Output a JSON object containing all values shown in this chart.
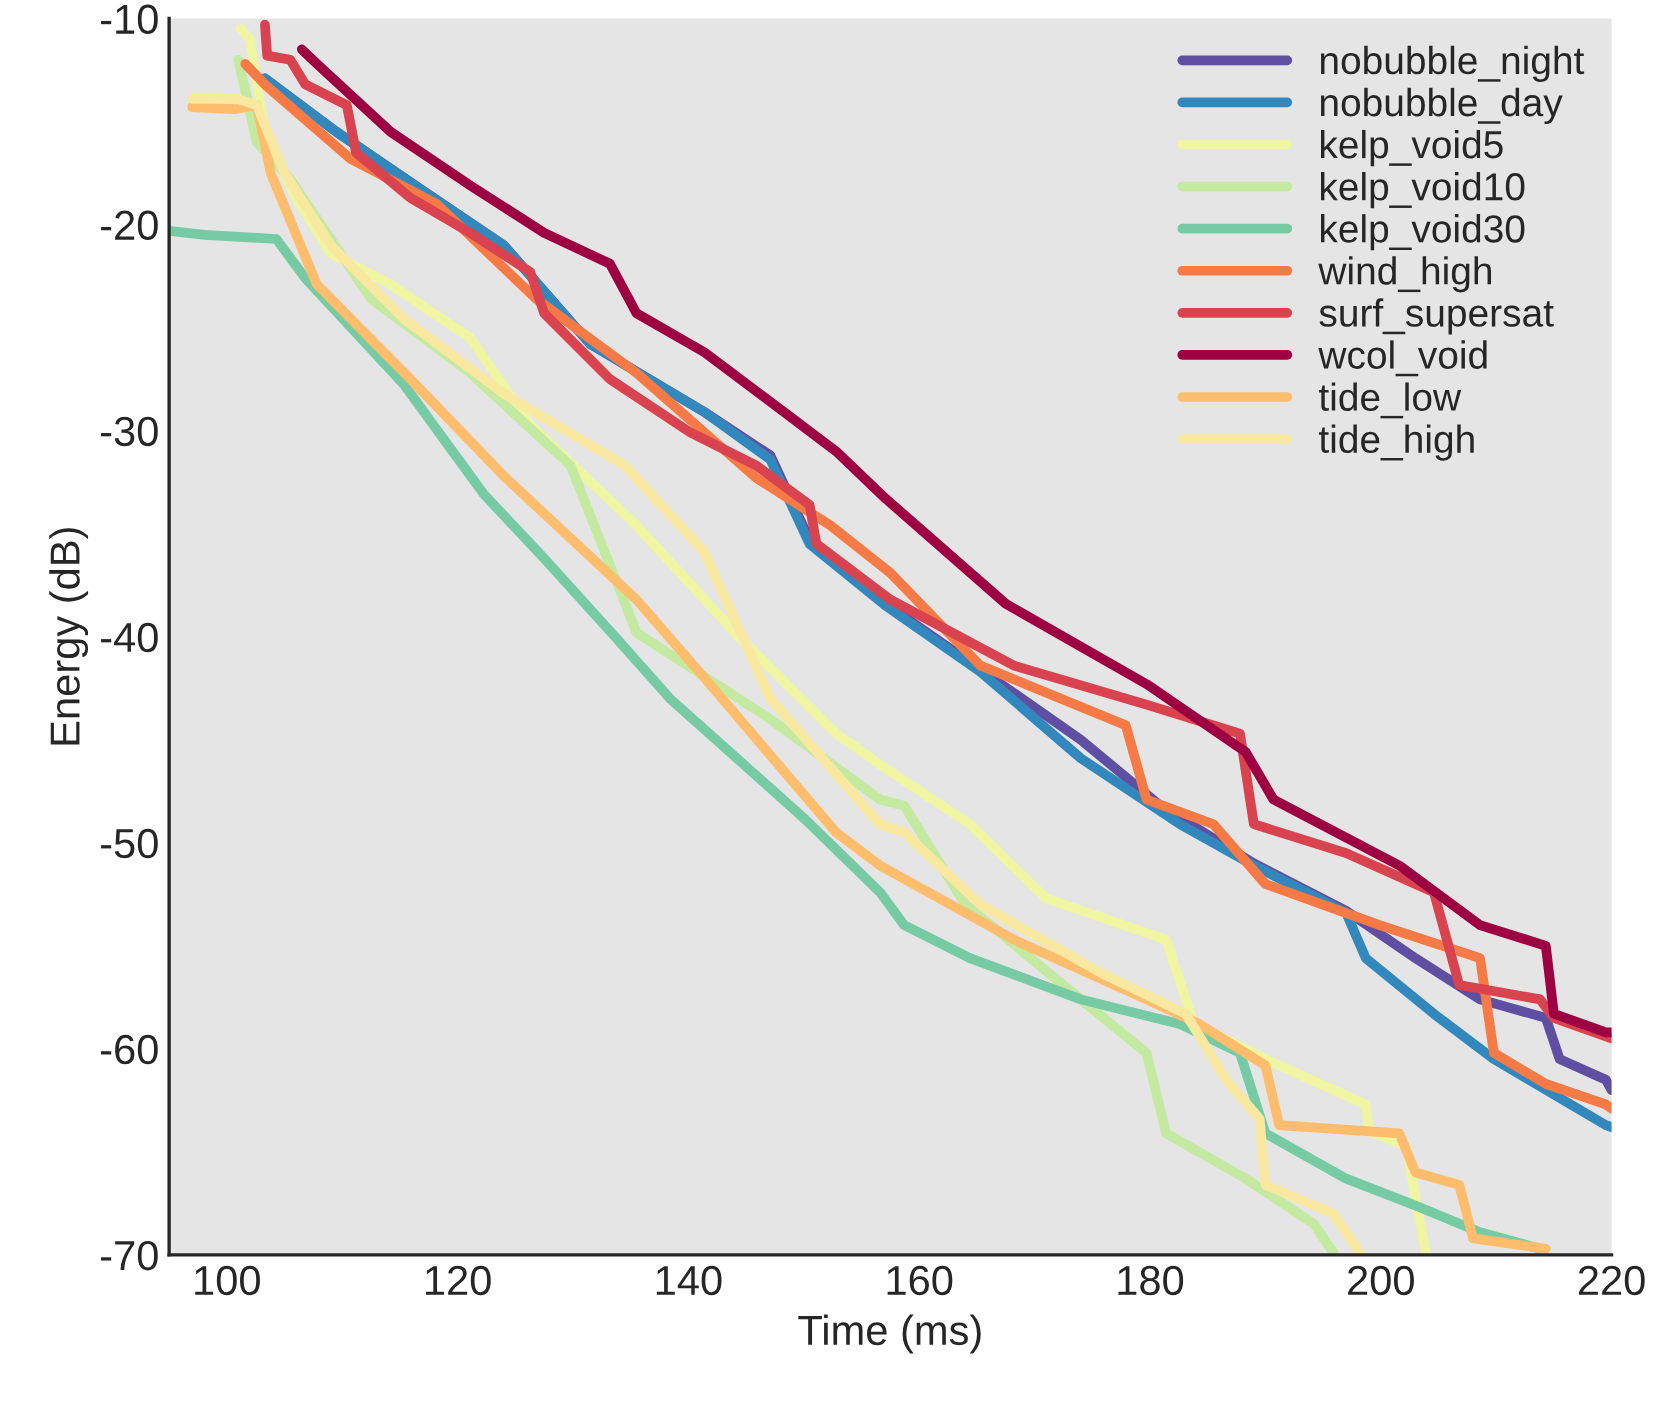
{
  "chart_data": {
    "type": "line",
    "xlabel": "Time (ms)",
    "ylabel": "Energy (dB)",
    "xlim": [
      95,
      220
    ],
    "ylim": [
      -70,
      -10
    ],
    "xticks": [
      100,
      120,
      140,
      160,
      180,
      200,
      220
    ],
    "yticks": [
      -70,
      -60,
      -50,
      -40,
      -30,
      -20,
      -10
    ],
    "grid": false,
    "legend": "top right",
    "marker": "none",
    "line_style": "solid",
    "series": [
      {
        "name": "nobubble_night",
        "color": "#5e4fa2",
        "x": [
          103.3,
          109.5,
          117.1,
          124,
          131.5,
          141.4,
          147.1,
          150.5,
          157.1,
          165.3,
          174,
          180.9,
          189,
          197,
          203,
          208.6,
          214.3,
          215.5,
          219.5,
          220
        ],
        "values": [
          -12.9,
          -15.5,
          -18.4,
          -21,
          -25.8,
          -29.1,
          -31.2,
          -35.3,
          -38.4,
          -41.6,
          -45,
          -48.2,
          -51,
          -53.3,
          -55.6,
          -57.6,
          -58.5,
          -60.5,
          -61.5,
          -62
        ]
      },
      {
        "name": "nobubble_day",
        "color": "#3288bd",
        "x": [
          103.3,
          109.5,
          117.1,
          124,
          131.5,
          141.4,
          147.1,
          150.5,
          157.1,
          165.3,
          174,
          182.6,
          189,
          197,
          198.7,
          204.6,
          209.8,
          219.5,
          220
        ],
        "values": [
          -12.9,
          -15.5,
          -18.4,
          -21,
          -25.8,
          -29.1,
          -31.4,
          -35.5,
          -38.5,
          -41.7,
          -45.9,
          -49.1,
          -51.1,
          -53.4,
          -55.6,
          -58.3,
          -60.5,
          -63.7,
          -63.8
        ]
      },
      {
        "name": "kelp_void5",
        "color": "#eef6a2",
        "x": [
          101.2,
          102,
          103.3,
          106,
          109,
          114.2,
          121.1,
          126.3,
          135.5,
          144.2,
          152.8,
          156.6,
          164.4,
          171,
          181.4,
          183.8,
          191.2,
          198.7,
          199,
          202.2,
          203.9
        ],
        "values": [
          -10.5,
          -11,
          -15.5,
          -18.7,
          -21.4,
          -22.9,
          -25.5,
          -29.7,
          -34.6,
          -39.9,
          -44.7,
          -46.2,
          -49.1,
          -52.7,
          -54.7,
          -58.8,
          -60.8,
          -62.7,
          -64,
          -64.7,
          -69.9
        ]
      },
      {
        "name": "kelp_void10",
        "color": "#c4e9a0",
        "x": [
          101,
          102.6,
          105.5,
          112.5,
          121.1,
          129.8,
          135.5,
          147.1,
          156.6,
          158.7,
          164,
          174,
          179.7,
          181.4,
          188.3,
          194.2,
          195.9
        ],
        "values": [
          -12,
          -16,
          -17.8,
          -23.6,
          -27.2,
          -31.7,
          -39.8,
          -44,
          -47.9,
          -48.2,
          -53,
          -57.6,
          -60.2,
          -64.1,
          -66.3,
          -68.5,
          -69.9
        ]
      },
      {
        "name": "kelp_void30",
        "color": "#76cba5",
        "x": [
          95,
          98.1,
          104.3,
          106.8,
          115.4,
          122.3,
          127.5,
          133.8,
          138.4,
          150,
          156.6,
          158.7,
          164.4,
          174,
          182.6,
          187.8,
          190,
          197,
          203,
          208.6,
          213.8
        ],
        "values": [
          -20.3,
          -20.5,
          -20.7,
          -22.6,
          -27.8,
          -33.1,
          -36.2,
          -40.1,
          -43,
          -48.8,
          -52.4,
          -54,
          -55.6,
          -57.6,
          -58.8,
          -60.2,
          -64.1,
          -66.3,
          -67.6,
          -68.9,
          -69.7
        ]
      },
      {
        "name": "wind_high",
        "color": "#f57a45",
        "x": [
          101.6,
          103.3,
          110.7,
          118.2,
          126.8,
          135.5,
          145.9,
          152.3,
          157.5,
          165.3,
          177.9,
          179.7,
          185.5,
          190,
          199.9,
          208.6,
          209.8,
          214.3,
          219.5,
          220
        ],
        "values": [
          -12.2,
          -13.2,
          -16.8,
          -19,
          -23.6,
          -27.2,
          -32.3,
          -34.6,
          -36.9,
          -41.4,
          -44.3,
          -47.9,
          -49.1,
          -52,
          -54,
          -55.6,
          -60.2,
          -61.7,
          -62.7,
          -62.9
        ]
      },
      {
        "name": "surf_supersat",
        "color": "#d9434f",
        "x": [
          103.3,
          103.5,
          105.5,
          106.8,
          110.4,
          111.2,
          115.9,
          121.1,
          126.3,
          127.5,
          133.2,
          140.2,
          145.9,
          150.5,
          151.1,
          157.5,
          168.2,
          179.7,
          187.8,
          189,
          197,
          204.6,
          206.8,
          213.8,
          215,
          220
        ],
        "values": [
          -10.3,
          -11.8,
          -12,
          -13.2,
          -14.2,
          -16.5,
          -18.7,
          -20.4,
          -22.3,
          -24.3,
          -27.5,
          -30.1,
          -31.7,
          -33.6,
          -35.5,
          -38.2,
          -41.4,
          -43.3,
          -44.7,
          -49.1,
          -50.5,
          -52.4,
          -56.9,
          -57.6,
          -58.5,
          -59.5
        ]
      },
      {
        "name": "wcol_void",
        "color": "#9e0142",
        "x": [
          106.5,
          107.8,
          114.2,
          121.1,
          127.5,
          133.2,
          135.5,
          141.4,
          148.3,
          152.8,
          157.1,
          167.5,
          179.7,
          188.3,
          190.7,
          201.6,
          208.6,
          214.3,
          215,
          219.5,
          220
        ],
        "values": [
          -11.5,
          -12.2,
          -15.5,
          -18.1,
          -20.4,
          -21.9,
          -24.3,
          -26.2,
          -29.1,
          -31,
          -33.3,
          -38.4,
          -42.3,
          -45.6,
          -47.9,
          -51.1,
          -54,
          -55,
          -58.3,
          -59.2,
          -59.2
        ]
      },
      {
        "name": "tide_low",
        "color": "#fdbd6c",
        "x": [
          97,
          100.7,
          102.6,
          103.8,
          107.8,
          115.4,
          124,
          135.5,
          141.4,
          152.8,
          156.6,
          168.2,
          179.7,
          184.3,
          190,
          191.2,
          201.6,
          203,
          206.8,
          208,
          214.3
        ],
        "values": [
          -14.3,
          -14.4,
          -14.2,
          -17.5,
          -22.9,
          -27.2,
          -32.2,
          -38.2,
          -42,
          -49.5,
          -51.1,
          -54.7,
          -57.6,
          -58.8,
          -60.8,
          -63.7,
          -64.1,
          -66,
          -66.6,
          -69.2,
          -69.7
        ]
      },
      {
        "name": "tide_high",
        "color": "#f9e8a0",
        "x": [
          97,
          100.9,
          102.6,
          105,
          109,
          115.4,
          124,
          134.5,
          141.4,
          147.1,
          156.6,
          158.7,
          165.3,
          175.7,
          183.1,
          186.6,
          189.5,
          190,
          195.9,
          198.2
        ],
        "values": [
          -13.9,
          -13.9,
          -14.2,
          -17.5,
          -21,
          -24.6,
          -28.2,
          -31.7,
          -35.9,
          -43,
          -49.1,
          -49.5,
          -53,
          -56.3,
          -58.3,
          -61.5,
          -63.4,
          -66.6,
          -68,
          -69.9
        ]
      }
    ]
  }
}
